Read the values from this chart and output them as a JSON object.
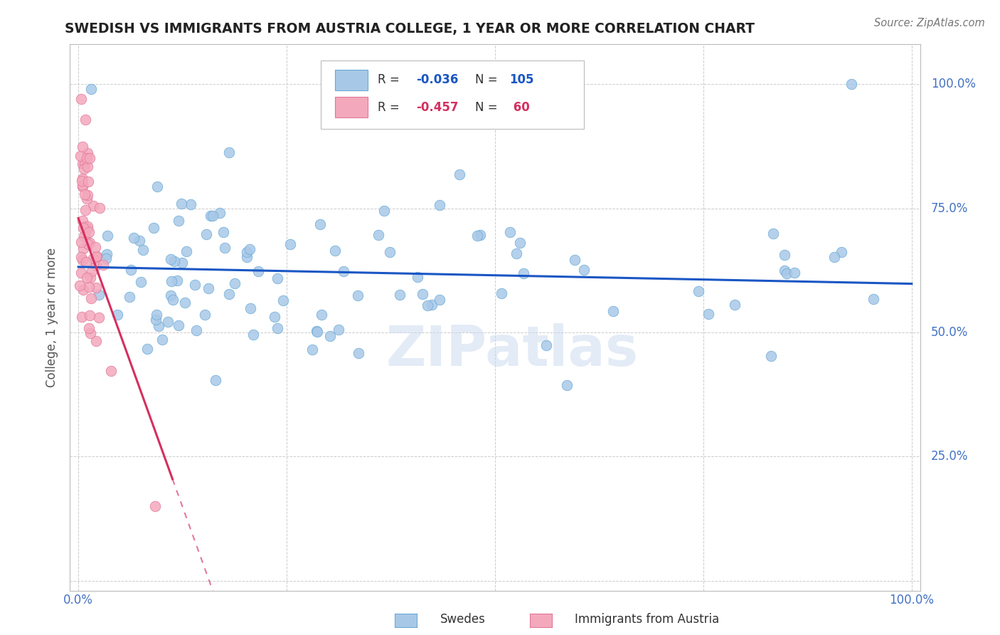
{
  "title": "SWEDISH VS IMMIGRANTS FROM AUSTRIA COLLEGE, 1 YEAR OR MORE CORRELATION CHART",
  "source": "Source: ZipAtlas.com",
  "ylabel": "College, 1 year or more",
  "xlim": [
    -0.01,
    1.01
  ],
  "ylim": [
    -0.02,
    1.08
  ],
  "blue_R": -0.036,
  "blue_N": 105,
  "pink_R": -0.457,
  "pink_N": 60,
  "blue_color": "#a8c8e8",
  "pink_color": "#f4a8bc",
  "blue_edge_color": "#6aaad4",
  "pink_edge_color": "#e07898",
  "blue_line_color": "#1a56c4",
  "pink_line_color": "#d43060",
  "legend_label_blue": "Swedes",
  "legend_label_pink": "Immigrants from Austria",
  "watermark": "ZIPatlas",
  "blue_line_y_start": 0.632,
  "blue_line_y_end": 0.598,
  "pink_line_x_solid_start": 0.0,
  "pink_line_x_solid_end": 0.113,
  "pink_line_y_at_0": 0.73,
  "pink_slope": -4.65,
  "background_color": "#ffffff",
  "grid_color": "#cccccc",
  "title_color": "#222222",
  "axis_label_color": "#555555",
  "tick_color": "#4472c4"
}
